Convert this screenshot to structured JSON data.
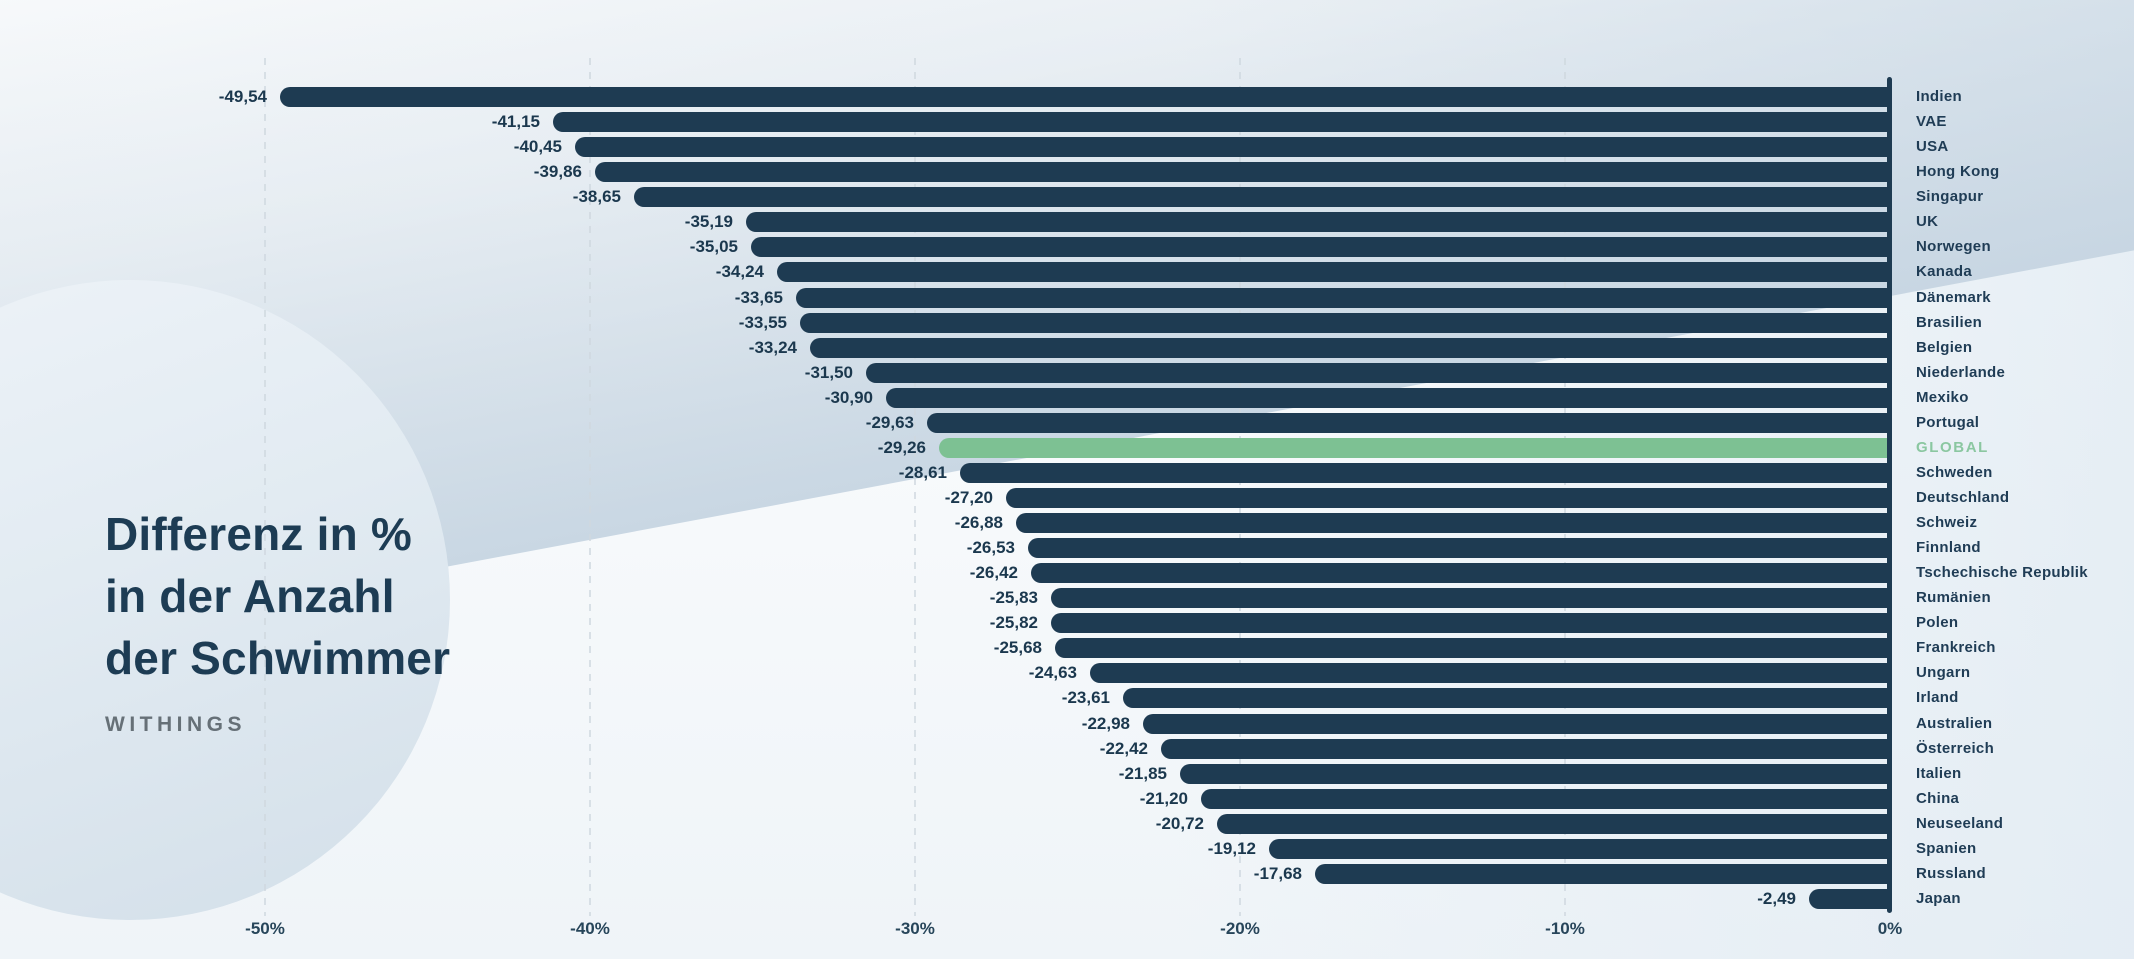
{
  "header": {
    "title_lines": [
      "Differenz in %",
      "in der Anzahl",
      "der Schwimmer"
    ],
    "brand": "WITHINGS"
  },
  "colors": {
    "bar_navy": "#1e3b52",
    "highlight_green": "#7dc193",
    "highlight_label_green": "#8bc7a1",
    "title_navy": "#1d3c54",
    "brand_gray": "#667077",
    "axis_label": "#27455a",
    "gridline": "#cfd8df",
    "background_tint": "#dde7ef"
  },
  "axis": {
    "ticks": [
      {
        "label": "-50%",
        "value": -50
      },
      {
        "label": "-40%",
        "value": -40
      },
      {
        "label": "-30%",
        "value": -30
      },
      {
        "label": "-20%",
        "value": -20
      },
      {
        "label": "-10%",
        "value": -10
      },
      {
        "label": "0%",
        "value": 0
      }
    ]
  },
  "chart_data": {
    "type": "bar",
    "orientation": "horizontal",
    "unit": "%",
    "title": "Differenz in % in der Anzahl der Schwimmer",
    "xlim": [
      -50,
      0
    ],
    "grid": "vertical-dashed",
    "highlight_category": "GLOBAL",
    "categories": [
      "Indien",
      "VAE",
      "USA",
      "Hong Kong",
      "Singapur",
      "UK",
      "Norwegen",
      "Kanada",
      "Dänemark",
      "Brasilien",
      "Belgien",
      "Niederlande",
      "Mexiko",
      "Portugal",
      "GLOBAL",
      "Schweden",
      "Deutschland",
      "Schweiz",
      "Finnland",
      "Tschechische Republik",
      "Rumänien",
      "Polen",
      "Frankreich",
      "Ungarn",
      "Irland",
      "Australien",
      "Österreich",
      "Italien",
      "China",
      "Neuseeland",
      "Spanien",
      "Russland",
      "Japan"
    ],
    "values": [
      -49.54,
      -41.15,
      -40.45,
      -39.86,
      -38.65,
      -35.19,
      -35.05,
      -34.24,
      -33.65,
      -33.55,
      -33.24,
      -31.5,
      -30.9,
      -29.63,
      -29.26,
      -28.61,
      -27.2,
      -26.88,
      -26.53,
      -26.42,
      -25.83,
      -25.82,
      -25.68,
      -24.63,
      -23.61,
      -22.98,
      -22.42,
      -21.85,
      -21.2,
      -20.72,
      -19.12,
      -17.68,
      -2.49
    ],
    "value_labels": [
      "-49,54",
      "-41,15",
      "-40,45",
      "-39,86",
      "-38,65",
      "-35,19",
      "-35,05",
      "-34,24",
      "-33,65",
      "-33,55",
      "-33,24",
      "-31,50",
      "-30,90",
      "-29,63",
      "-29,26",
      "-28,61",
      "-27,20",
      "-26,88",
      "-26,53",
      "-26,42",
      "-25,83",
      "-25,82",
      "-25,68",
      "-24,63",
      "-23,61",
      "-22,98",
      "-22,42",
      "-21,85",
      "-21,20",
      "-20,72",
      "-19,12",
      "-17,68",
      "-2,49"
    ]
  }
}
